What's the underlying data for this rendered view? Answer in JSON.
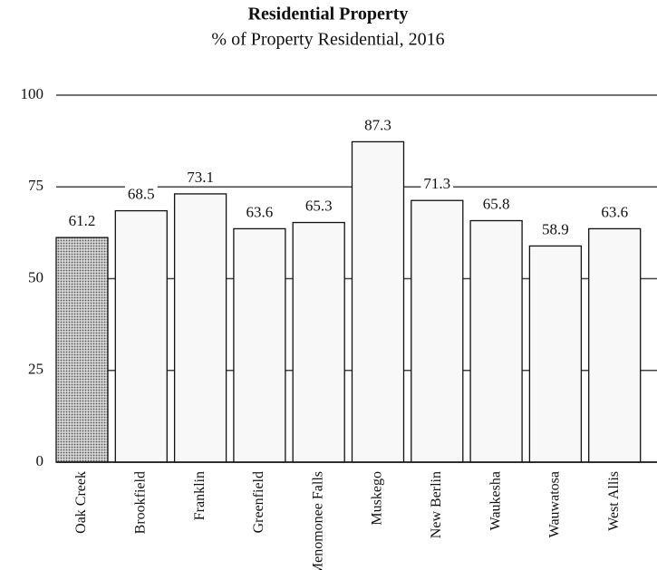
{
  "chart_data": {
    "type": "bar",
    "title": "Residential Property",
    "subtitle": "% of Property Residential, 2016",
    "categories": [
      "Oak Creek",
      "Brookfield",
      "Franklin",
      "Greenfield",
      "Menomonee Falls",
      "Muskego",
      "New Berlin",
      "Waukesha",
      "Wauwatosa",
      "West Allis"
    ],
    "values": [
      61.2,
      68.5,
      73.1,
      63.6,
      65.3,
      87.3,
      71.3,
      65.8,
      58.9,
      63.6
    ],
    "colors": [
      "#b8b8b8",
      "#f8f8f8",
      "#f8f8f8",
      "#f8f8f8",
      "#f8f8f8",
      "#f8f8f8",
      "#f8f8f8",
      "#f8f8f8",
      "#f8f8f8",
      "#f8f8f8"
    ],
    "ylim": [
      0,
      100
    ],
    "yticks": [
      0,
      25,
      50,
      75,
      100
    ],
    "grid": true
  }
}
